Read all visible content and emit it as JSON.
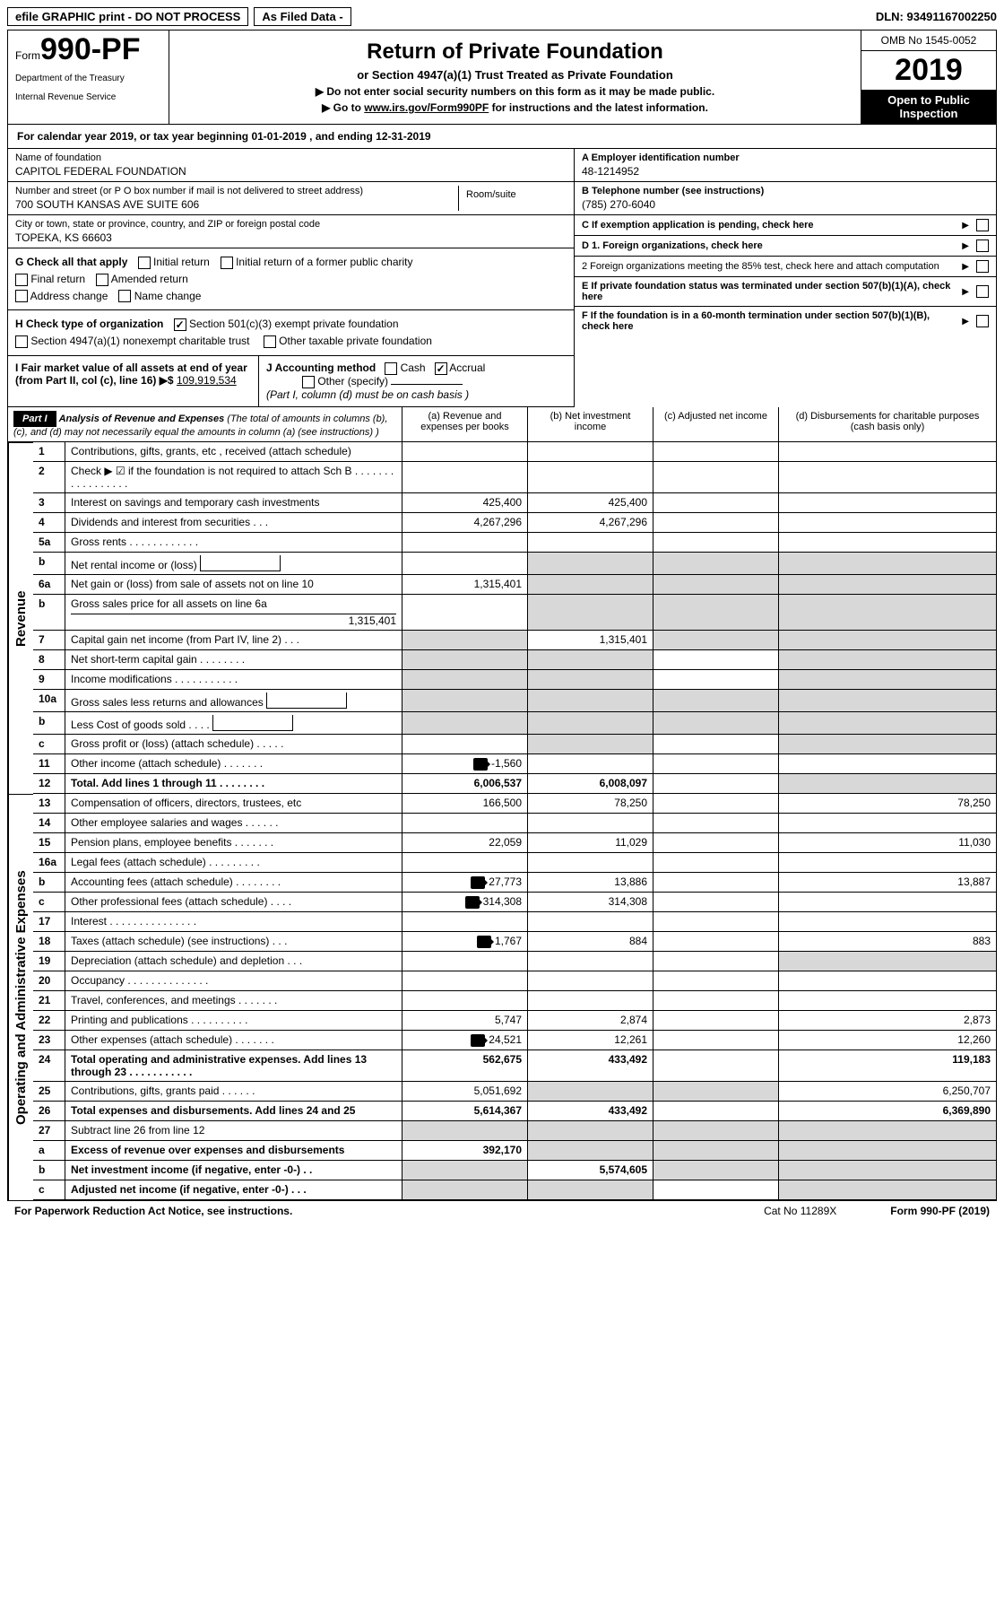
{
  "topbar": {
    "efile": "efile GRAPHIC print - DO NOT PROCESS",
    "asfiled": "As Filed Data -",
    "dln_label": "DLN:",
    "dln": "93491167002250"
  },
  "header": {
    "form_prefix": "Form",
    "form_num": "990-PF",
    "dept1": "Department of the Treasury",
    "dept2": "Internal Revenue Service",
    "title": "Return of Private Foundation",
    "subtitle": "or Section 4947(a)(1) Trust Treated as Private Foundation",
    "note1": "▶ Do not enter social security numbers on this form as it may be made public.",
    "note2_pre": "▶ Go to ",
    "note2_link": "www.irs.gov/Form990PF",
    "note2_post": " for instructions and the latest information.",
    "omb": "OMB No  1545-0052",
    "year": "2019",
    "inspect": "Open to Public Inspection"
  },
  "calyear": "For calendar year 2019, or tax year beginning 01-01-2019                      , and ending 12-31-2019",
  "info": {
    "name_label": "Name of foundation",
    "name": "CAPITOL FEDERAL FOUNDATION",
    "addr_label": "Number and street (or P O  box number if mail is not delivered to street address)",
    "room_label": "Room/suite",
    "addr": "700 SOUTH KANSAS AVE SUITE 606",
    "city_label": "City or town, state or province, country, and ZIP or foreign postal code",
    "city": "TOPEKA, KS  66603",
    "a_label": "A Employer identification number",
    "a_val": "48-1214952",
    "b_label": "B Telephone number (see instructions)",
    "b_val": "(785) 270-6040",
    "c_label": "C  If exemption application is pending, check here",
    "d1": "D 1. Foreign organizations, check here",
    "d2": "2  Foreign organizations meeting the 85% test, check here and attach computation",
    "e": "E  If private foundation status was terminated under section 507(b)(1)(A), check here",
    "f": "F  If the foundation is in a 60-month termination under section 507(b)(1)(B), check here"
  },
  "g": {
    "label": "G Check all that apply",
    "items": [
      "Initial return",
      "Initial return of a former public charity",
      "Final return",
      "Amended return",
      "Address change",
      "Name change"
    ]
  },
  "h": {
    "label": "H Check type of organization",
    "i1": "Section 501(c)(3) exempt private foundation",
    "i2": "Section 4947(a)(1) nonexempt charitable trust",
    "i3": "Other taxable private foundation"
  },
  "i": {
    "label": "I Fair market value of all assets at end of year (from Part II, col  (c), line 16) ▶$ ",
    "val": "109,919,534"
  },
  "j": {
    "label": "J Accounting method",
    "cash": "Cash",
    "accrual": "Accrual",
    "other": "Other (specify)",
    "note": "(Part I, column (d) must be on cash basis )"
  },
  "part1": {
    "hdr": "Part I",
    "desc_title": "Analysis of Revenue and Expenses",
    "desc_note": " (The total of amounts in columns (b), (c), and (d) may not necessarily equal the amounts in column (a) (see instructions) )",
    "col_a": "(a)   Revenue and expenses per books",
    "col_b": "(b)   Net investment income",
    "col_c": "(c)   Adjusted net income",
    "col_d": "(d)   Disbursements for charitable purposes (cash basis only)"
  },
  "side": {
    "rev": "Revenue",
    "exp": "Operating and Administrative Expenses"
  },
  "rows": [
    {
      "n": "1",
      "d": "Contributions, gifts, grants, etc , received (attach schedule)",
      "a": "",
      "b": "",
      "c": "",
      "dd": ""
    },
    {
      "n": "2",
      "d": "Check ▶ ☑ if the foundation is not required to attach Sch  B        .  .  .  .  .  .  .  .  .  .  .  .  .  .  .  .  .",
      "a": "",
      "b": "",
      "c": "",
      "dd": ""
    },
    {
      "n": "3",
      "d": "Interest on savings and temporary cash investments",
      "a": "425,400",
      "b": "425,400",
      "c": "",
      "dd": ""
    },
    {
      "n": "4",
      "d": "Dividends and interest from securities     .   .   .",
      "a": "4,267,296",
      "b": "4,267,296",
      "c": "",
      "dd": ""
    },
    {
      "n": "5a",
      "d": "Gross rents      .   .   .   .   .   .   .   .   .   .   .   .",
      "a": "",
      "b": "",
      "c": "",
      "dd": ""
    },
    {
      "n": "b",
      "d": "Net rental income or (loss)",
      "a": "",
      "b": "",
      "c": "",
      "dd": "",
      "grayBCD": true,
      "inlineBox": true
    },
    {
      "n": "6a",
      "d": "Net gain or (loss) from sale of assets not on line 10",
      "a": "1,315,401",
      "b": "",
      "c": "",
      "dd": "",
      "grayBCD": true
    },
    {
      "n": "b",
      "d": "Gross sales price for all assets on line 6a",
      "a": "",
      "b": "",
      "c": "",
      "dd": "",
      "grayBCD": true,
      "subval": "1,315,401"
    },
    {
      "n": "7",
      "d": "Capital gain net income (from Part IV, line 2)   .   .   .",
      "a": "",
      "b": "1,315,401",
      "c": "",
      "dd": "",
      "grayA": true,
      "grayCD": true
    },
    {
      "n": "8",
      "d": "Net short-term capital gain   .   .   .   .   .   .   .   .",
      "a": "",
      "b": "",
      "c": "",
      "dd": "",
      "grayAB": true,
      "grayD": true
    },
    {
      "n": "9",
      "d": "Income modifications  .   .   .   .   .   .   .   .   .   .   .",
      "a": "",
      "b": "",
      "c": "",
      "dd": "",
      "grayAB": true,
      "grayD": true
    },
    {
      "n": "10a",
      "d": "Gross sales less returns and allowances",
      "a": "",
      "b": "",
      "c": "",
      "dd": "",
      "grayAll": true,
      "inlineBox": true
    },
    {
      "n": "b",
      "d": "Less  Cost of goods sold     .   .   .   .",
      "a": "",
      "b": "",
      "c": "",
      "dd": "",
      "grayAll": true,
      "inlineBox": true
    },
    {
      "n": "c",
      "d": "Gross profit or (loss) (attach schedule)    .   .   .   .   .",
      "a": "",
      "b": "",
      "c": "",
      "dd": "",
      "grayB": true,
      "grayD": true
    },
    {
      "n": "11",
      "d": "Other income (attach schedule)    .   .   .   .   .   .   .",
      "a": "-1,560",
      "b": "",
      "c": "",
      "dd": "",
      "icon": true
    },
    {
      "n": "12",
      "d": "Total. Add lines 1 through 11   .   .   .   .   .   .   .   .",
      "a": "6,006,537",
      "b": "6,008,097",
      "c": "",
      "dd": "",
      "bold": true,
      "grayD": true
    }
  ],
  "exp_rows": [
    {
      "n": "13",
      "d": "Compensation of officers, directors, trustees, etc",
      "a": "166,500",
      "b": "78,250",
      "c": "",
      "dd": "78,250"
    },
    {
      "n": "14",
      "d": "Other employee salaries and wages     .   .   .   .   .   .",
      "a": "",
      "b": "",
      "c": "",
      "dd": ""
    },
    {
      "n": "15",
      "d": "Pension plans, employee benefits    .   .   .   .   .   .   .",
      "a": "22,059",
      "b": "11,029",
      "c": "",
      "dd": "11,030"
    },
    {
      "n": "16a",
      "d": "Legal fees (attach schedule) .   .   .   .   .   .   .   .   .",
      "a": "",
      "b": "",
      "c": "",
      "dd": ""
    },
    {
      "n": "b",
      "d": "Accounting fees (attach schedule) .   .   .   .   .   .   .   .",
      "a": "27,773",
      "b": "13,886",
      "c": "",
      "dd": "13,887",
      "icon": true
    },
    {
      "n": "c",
      "d": "Other professional fees (attach schedule)    .   .   .   .",
      "a": "314,308",
      "b": "314,308",
      "c": "",
      "dd": "",
      "icon": true
    },
    {
      "n": "17",
      "d": "Interest  .   .   .   .   .   .   .   .   .   .   .   .   .   .   .",
      "a": "",
      "b": "",
      "c": "",
      "dd": ""
    },
    {
      "n": "18",
      "d": "Taxes (attach schedule) (see instructions)     .   .   .",
      "a": "1,767",
      "b": "884",
      "c": "",
      "dd": "883",
      "icon": true
    },
    {
      "n": "19",
      "d": "Depreciation (attach schedule) and depletion    .   .   .",
      "a": "",
      "b": "",
      "c": "",
      "dd": "",
      "grayD": true
    },
    {
      "n": "20",
      "d": "Occupancy   .   .   .   .   .   .   .   .   .   .   .   .   .   .",
      "a": "",
      "b": "",
      "c": "",
      "dd": ""
    },
    {
      "n": "21",
      "d": "Travel, conferences, and meetings .   .   .   .   .   .   .",
      "a": "",
      "b": "",
      "c": "",
      "dd": ""
    },
    {
      "n": "22",
      "d": "Printing and publications .   .   .   .   .   .   .   .   .   .",
      "a": "5,747",
      "b": "2,874",
      "c": "",
      "dd": "2,873"
    },
    {
      "n": "23",
      "d": "Other expenses (attach schedule)   .   .   .   .   .   .   .",
      "a": "24,521",
      "b": "12,261",
      "c": "",
      "dd": "12,260",
      "icon": true
    },
    {
      "n": "24",
      "d": "Total operating and administrative expenses. Add lines 13 through 23   .   .   .   .   .   .   .   .   .   .   .",
      "a": "562,675",
      "b": "433,492",
      "c": "",
      "dd": "119,183",
      "bold": true
    },
    {
      "n": "25",
      "d": "Contributions, gifts, grants paid      .   .   .   .   .   .",
      "a": "5,051,692",
      "b": "",
      "c": "",
      "dd": "6,250,707",
      "grayBC": true
    },
    {
      "n": "26",
      "d": "Total expenses and disbursements. Add lines 24 and 25",
      "a": "5,614,367",
      "b": "433,492",
      "c": "",
      "dd": "6,369,890",
      "bold": true
    },
    {
      "n": "27",
      "d": "Subtract line 26 from line 12",
      "a": "",
      "b": "",
      "c": "",
      "dd": "",
      "grayAll": true
    },
    {
      "n": "a",
      "d": "Excess of revenue over expenses and disbursements",
      "a": "392,170",
      "b": "",
      "c": "",
      "dd": "",
      "bold": true,
      "grayBCD": true
    },
    {
      "n": "b",
      "d": "Net investment income (if negative, enter -0-)    .   .",
      "a": "",
      "b": "5,574,605",
      "c": "",
      "dd": "",
      "bold": true,
      "grayA": true,
      "grayCD": true
    },
    {
      "n": "c",
      "d": "Adjusted net income (if negative, enter -0-)  .   .   .",
      "a": "",
      "b": "",
      "c": "",
      "dd": "",
      "bold": true,
      "grayAB": true,
      "grayD": true
    }
  ],
  "footer": {
    "left": "For Paperwork Reduction Act Notice, see instructions.",
    "mid": "Cat  No  11289X",
    "right": "Form 990-PF (2019)"
  }
}
